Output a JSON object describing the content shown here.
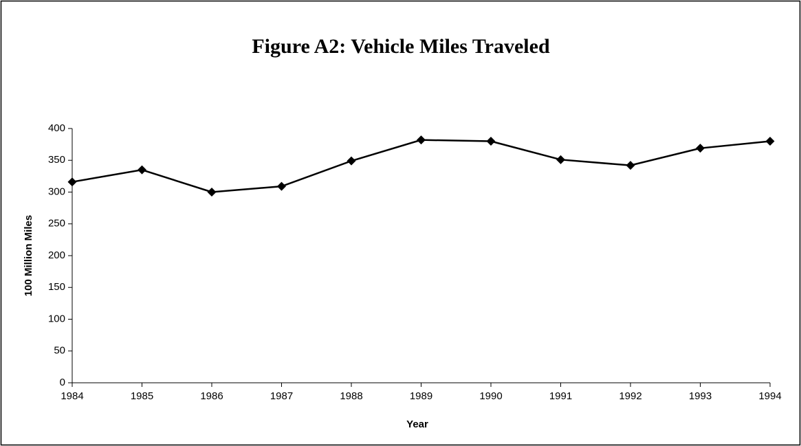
{
  "chart_data": {
    "type": "line",
    "title": "Figure A2: Vehicle Miles Traveled",
    "x_label": "Year",
    "y_label": "100 Million Miles",
    "x": [
      1984,
      1985,
      1986,
      1987,
      1988,
      1989,
      1990,
      1991,
      1992,
      1993,
      1994
    ],
    "values": [
      316,
      335,
      300,
      309,
      349,
      382,
      380,
      351,
      342,
      369,
      380
    ],
    "color": "#000000",
    "xlim": [
      1984,
      1994
    ],
    "xticks": [
      1984,
      1985,
      1986,
      1987,
      1988,
      1989,
      1990,
      1991,
      1992,
      1993,
      1994
    ],
    "ylim": [
      0,
      400
    ],
    "yticks": [
      0,
      50,
      100,
      150,
      200,
      250,
      300,
      350,
      400
    ],
    "grid": false
  }
}
